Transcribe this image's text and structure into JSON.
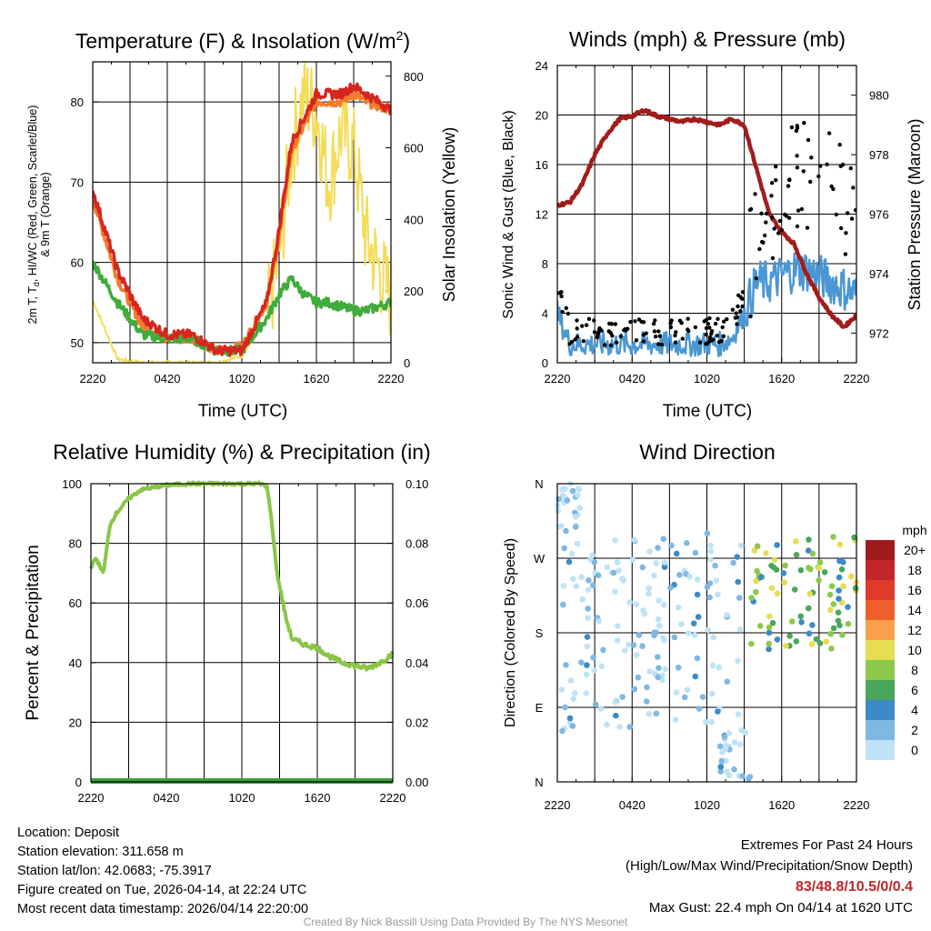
{
  "colors": {
    "temp": "#d6261f",
    "dew": "#3fac3b",
    "solar": "#f4dc59",
    "t9": "#f57a2a",
    "pressure": "#a21c1c",
    "wind": "#4b97d3",
    "gust": "#000000",
    "rh": "#8bc548",
    "precip": "#3f9c3f"
  },
  "x_ticks": [
    "2220",
    "0420",
    "1020",
    "1620",
    "2220"
  ],
  "x_label": "Time (UTC)",
  "temp_panel": {
    "title_pre": "Temperature (F) & Insolation (W/m",
    "title_sup": "2",
    "title_post": ")",
    "ylabel_line1": "2m T, T",
    "ylabel_sub": "d",
    "ylabel_line1b": ", HI/WC (Red, Green, Scarlet/Blue)",
    "ylabel_line2": "& 9m T (Orange)",
    "ylabel_right": "Solar Insolation (Yellow)",
    "y_ticks": [
      "50",
      "60",
      "70",
      "80"
    ],
    "y_right_ticks": [
      "0",
      "200",
      "400",
      "600",
      "800"
    ]
  },
  "wind_panel": {
    "title": "Winds (mph) & Pressure (mb)",
    "ylabel": "Sonic Wind & Gust (Blue, Black)",
    "ylabel_right": "Station Pressure (Maroon)",
    "y_ticks": [
      "0",
      "4",
      "8",
      "12",
      "16",
      "20",
      "24"
    ],
    "y_right_ticks": [
      "972",
      "974",
      "976",
      "978",
      "980"
    ]
  },
  "rh_panel": {
    "title": "Relative Humidity (%) & Precipitation (in)",
    "ylabel": "Percent & Precipitation",
    "y_ticks": [
      "0",
      "20",
      "40",
      "60",
      "80",
      "100"
    ],
    "y_right_ticks": [
      "0.00",
      "0.02",
      "0.04",
      "0.06",
      "0.08",
      "0.10"
    ]
  },
  "dir_panel": {
    "title": "Wind Direction",
    "ylabel": "Direction (Colored By Speed)",
    "y_ticks": [
      "N",
      "E",
      "S",
      "W",
      "N"
    ],
    "legend_title": "mph",
    "legend_labels": [
      "20+",
      "18",
      "16",
      "14",
      "12",
      "10",
      "8",
      "6",
      "4",
      "2",
      "0"
    ],
    "legend_colors": [
      "#9e1b1e",
      "#c2262b",
      "#df3a2a",
      "#f05e2b",
      "#f9a04a",
      "#e6dd52",
      "#8cc84b",
      "#4aa65a",
      "#3c8ac6",
      "#7fb8e2",
      "#bfe3f6"
    ]
  },
  "chart_data": [
    {
      "type": "line",
      "title": "Temperature (F) & Insolation (W/m2)",
      "xlabel": "Time (UTC)",
      "ylabel": "2m T, Td, HI/WC (Red, Green, Scarlet/Blue) & 9m T (Orange)",
      "ylabel_right": "Solar Insolation (Yellow)",
      "x_hours": [
        0,
        2,
        4,
        6,
        8,
        10,
        12,
        14,
        15,
        16,
        17,
        18,
        19,
        20,
        21,
        22,
        24
      ],
      "ylim": [
        47.5,
        85
      ],
      "ylim_right": [
        0,
        840
      ],
      "series": [
        {
          "name": "2m T",
          "axis": "left",
          "values": [
            69,
            59,
            53,
            51,
            51,
            49,
            49,
            55,
            64,
            75,
            78,
            81,
            81,
            81,
            82,
            81,
            79
          ]
        },
        {
          "name": "9m T",
          "axis": "left",
          "values": [
            68,
            58,
            52,
            50.5,
            50.5,
            49,
            49.5,
            55,
            63,
            74,
            77,
            80,
            80,
            80,
            81,
            80,
            79
          ]
        },
        {
          "name": "Dew Point",
          "axis": "left",
          "values": [
            60,
            55,
            51,
            50.5,
            50.5,
            49,
            49,
            53,
            56,
            58,
            56,
            55,
            55,
            54.5,
            54,
            54,
            55
          ]
        },
        {
          "name": "Solar Insolation",
          "axis": "right",
          "values": [
            175,
            10,
            0,
            0,
            0,
            0,
            20,
            120,
            300,
            600,
            750,
            700,
            500,
            650,
            600,
            350,
            180
          ]
        }
      ]
    },
    {
      "type": "line",
      "title": "Winds (mph) & Pressure (mb)",
      "xlabel": "Time (UTC)",
      "ylabel": "Sonic Wind & Gust (Blue, Black)",
      "ylabel_right": "Station Pressure (Maroon)",
      "x_hours": [
        0,
        1,
        2,
        3,
        4,
        5,
        6,
        7,
        8,
        9,
        10,
        11,
        12,
        13,
        14,
        15,
        16,
        17,
        18,
        19,
        20,
        21,
        22,
        23,
        24
      ],
      "ylim": [
        0,
        24
      ],
      "ylim_right": [
        971,
        981
      ],
      "series": [
        {
          "name": "Sonic Wind",
          "axis": "left",
          "values": [
            4,
            1.5,
            1.5,
            1.5,
            1.5,
            1.5,
            1.5,
            1.5,
            1.5,
            1.5,
            1.5,
            1.5,
            1.5,
            1.5,
            2,
            4,
            6.5,
            6.5,
            7,
            7.5,
            7.5,
            7,
            6.5,
            6,
            5.5
          ]
        },
        {
          "name": "Gust",
          "axis": "left",
          "values": [
            6,
            2.5,
            2.5,
            2.5,
            2.5,
            2.5,
            2.5,
            2.5,
            2.5,
            2.5,
            2.5,
            2.5,
            2.5,
            2.5,
            3,
            6,
            10,
            12,
            13.5,
            15,
            15,
            14.5,
            14,
            13,
            12
          ]
        },
        {
          "name": "Station Pressure",
          "axis": "right",
          "values": [
            976.3,
            976.4,
            977,
            978,
            978.7,
            979.2,
            979.3,
            979.5,
            979.3,
            979.2,
            979.1,
            979.2,
            979.1,
            979,
            979.2,
            979,
            977.5,
            976,
            975.4,
            975,
            974,
            973.2,
            972.6,
            972.2,
            972.6
          ]
        }
      ]
    },
    {
      "type": "line",
      "title": "Relative Humidity (%) & Precipitation (in)",
      "xlabel": "",
      "ylabel": "Percent & Precipitation",
      "x_hours": [
        0,
        0.4,
        1,
        1.5,
        2,
        3,
        4,
        6,
        8,
        10,
        12,
        13.5,
        14,
        14.3,
        14.8,
        15.5,
        16,
        17,
        18,
        19,
        20,
        21,
        22,
        23,
        24
      ],
      "ylim": [
        0,
        100
      ],
      "ylim_right": [
        0,
        0.1
      ],
      "series": [
        {
          "name": "Relative Humidity",
          "axis": "left",
          "values": [
            72,
            75,
            70,
            86,
            90,
            95,
            98,
            99.5,
            100,
            100,
            100,
            100,
            99,
            90,
            70,
            55,
            48,
            46,
            45,
            42,
            40,
            39,
            38,
            40,
            43
          ]
        },
        {
          "name": "Precipitation",
          "axis": "right",
          "values": [
            0,
            0,
            0,
            0,
            0,
            0,
            0,
            0,
            0,
            0,
            0,
            0,
            0,
            0,
            0,
            0,
            0,
            0,
            0,
            0,
            0,
            0,
            0,
            0,
            0
          ]
        }
      ]
    },
    {
      "type": "scatter",
      "title": "Wind Direction",
      "ylabel": "Direction (Colored By Speed)",
      "description_axis": "N-E-S-W-N (0-360 degrees)",
      "clusters": [
        {
          "x_hours": [
            0,
            2
          ],
          "dir_deg": [
            300,
            360
          ],
          "speed_mph": [
            0,
            4
          ]
        },
        {
          "x_hours": [
            0,
            15
          ],
          "dir_deg": [
            60,
            300
          ],
          "speed_mph": [
            0,
            4
          ]
        },
        {
          "x_hours": [
            13,
            15.5
          ],
          "dir_deg": [
            0,
            60
          ],
          "speed_mph": [
            0,
            4
          ]
        },
        {
          "x_hours": [
            15.5,
            24
          ],
          "dir_deg": [
            160,
            300
          ],
          "speed_mph": [
            4,
            10
          ]
        }
      ]
    }
  ],
  "info": {
    "location": "Location: Deposit",
    "elevation": "Station elevation: 311.658 m",
    "latlon": "Station lat/lon: 42.0683; -75.3917",
    "created": "Figure created on Tue, 2026-04-14, at 22:24 UTC",
    "recent": "Most recent data timestamp: 2026/04/14 22:20:00",
    "extremes_title": "Extremes For Past 24 Hours",
    "extremes_sub": "(High/Low/Max Wind/Precipitation/Snow Depth)",
    "extremes_values": "83/48.8/10.5/0/0.4",
    "max_gust": "Max Gust: 22.4 mph On 04/14 at 1620 UTC",
    "credit": "Created By Nick Bassill Using Data Provided By The NYS Mesonet"
  }
}
